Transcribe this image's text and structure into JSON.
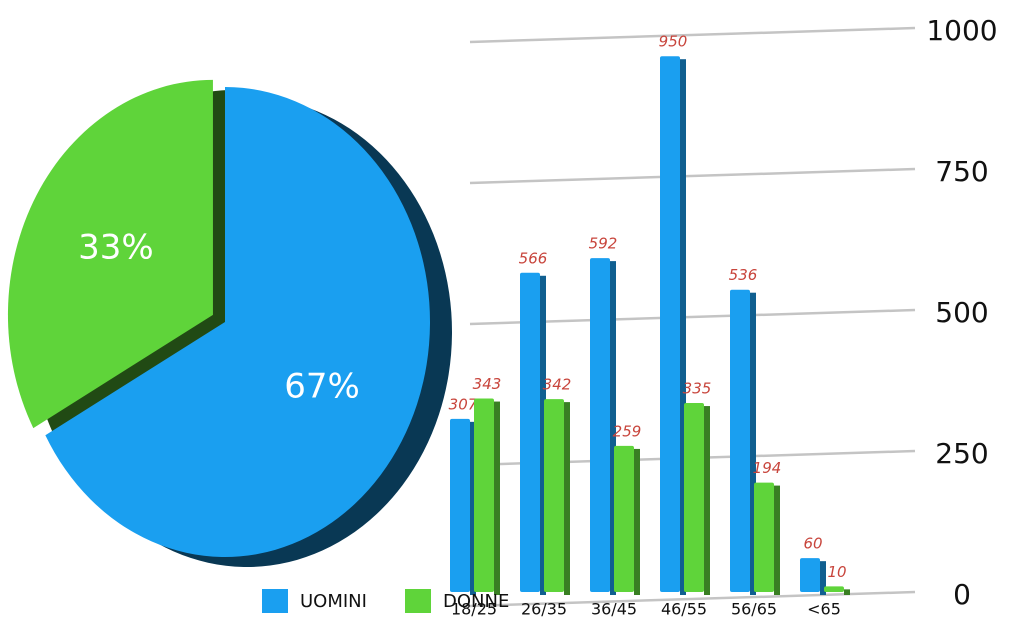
{
  "chart_data": [
    {
      "type": "pie",
      "values": [
        67,
        33
      ],
      "value_labels": [
        "67%",
        "33%"
      ],
      "colors": [
        "#1a9ff0",
        "#5fd43a"
      ]
    },
    {
      "type": "bar",
      "categories": [
        "18/25",
        "26/35",
        "36/45",
        "46/55",
        "56/65",
        "<65"
      ],
      "series": [
        {
          "name": "UOMINI",
          "color": "#1a9ff0",
          "values": [
            307,
            566,
            592,
            950,
            536,
            60
          ]
        },
        {
          "name": "DONNE",
          "color": "#5fd43a",
          "values": [
            343,
            342,
            259,
            335,
            194,
            10
          ]
        }
      ],
      "ylim": [
        0,
        1000
      ],
      "yticks": [
        0,
        250,
        500,
        750,
        1000
      ],
      "grid": true
    }
  ]
}
